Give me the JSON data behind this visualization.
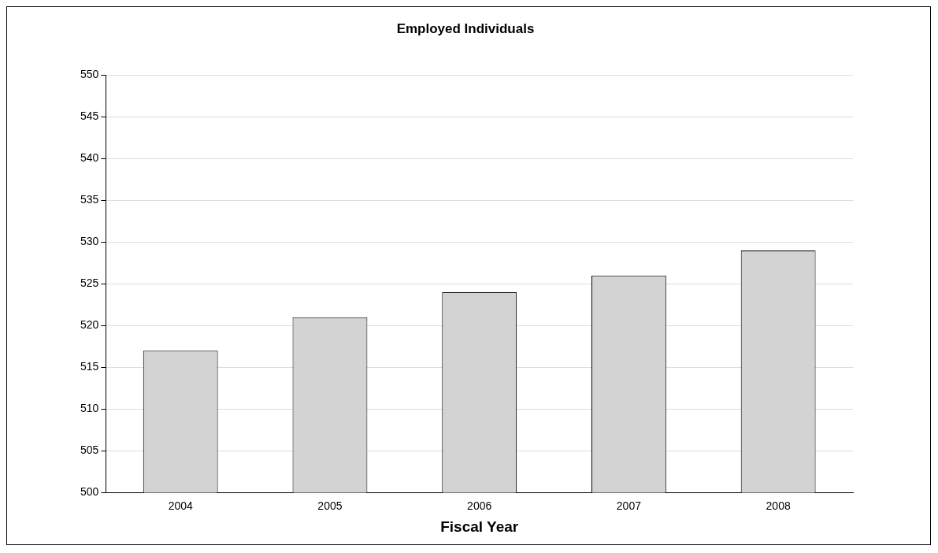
{
  "chart_data": {
    "type": "bar",
    "title": "Employed Individuals",
    "xlabel": "Fiscal Year",
    "categories": [
      "2004",
      "2005",
      "2006",
      "2007",
      "2008"
    ],
    "values": [
      517,
      521,
      524,
      526,
      529
    ],
    "color": "#d3d3d3",
    "ylim": [
      500,
      550
    ],
    "yticks": [
      500,
      505,
      510,
      515,
      520,
      525,
      530,
      535,
      540,
      545,
      550
    ],
    "grid": "y"
  }
}
